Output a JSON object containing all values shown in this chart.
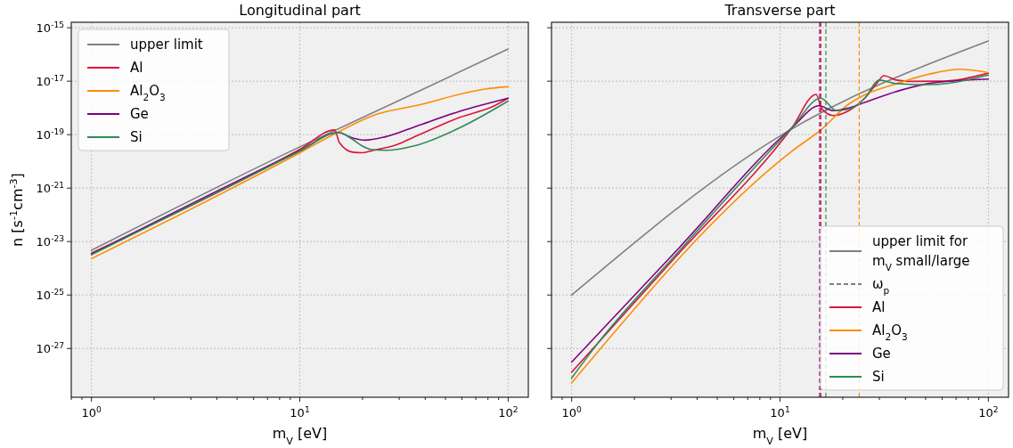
{
  "chart_data": [
    {
      "type": "line",
      "title": "Longitudinal part",
      "xlabel": "m$_{V}$ [eV]",
      "ylabel": "n [s$^{-1}$cm$^{-3}$]",
      "log": "xy",
      "grid": true,
      "legend": "top left",
      "xlim": [
        0.8,
        125
      ],
      "ylim": [
        1.5e-29,
        1.6e-15
      ],
      "xticks": [
        {
          "value": 0.8,
          "label": null
        },
        {
          "value": 0.9,
          "label": null
        },
        {
          "value": 1,
          "label": "10$^{0}$"
        },
        {
          "value": 2,
          "label": null
        },
        {
          "value": 3,
          "label": null
        },
        {
          "value": 4,
          "label": null
        },
        {
          "value": 5,
          "label": null
        },
        {
          "value": 6,
          "label": null
        },
        {
          "value": 7,
          "label": null
        },
        {
          "value": 8,
          "label": null
        },
        {
          "value": 9,
          "label": null
        },
        {
          "value": 10,
          "label": "10$^{1}$"
        },
        {
          "value": 20,
          "label": null
        },
        {
          "value": 30,
          "label": null
        },
        {
          "value": 40,
          "label": null
        },
        {
          "value": 50,
          "label": null
        },
        {
          "value": 60,
          "label": null
        },
        {
          "value": 70,
          "label": null
        },
        {
          "value": 80,
          "label": null
        },
        {
          "value": 90,
          "label": null
        },
        {
          "value": 100,
          "label": "10$^{2}$"
        }
      ],
      "yticks": [
        {
          "value": 1e-27,
          "label": "10$^{-27}$"
        },
        {
          "value": 1e-25,
          "label": "10$^{-25}$"
        },
        {
          "value": 1e-23,
          "label": "10$^{-23}$"
        },
        {
          "value": 1e-21,
          "label": "10$^{-21}$"
        },
        {
          "value": 1e-19,
          "label": "10$^{-19}$"
        },
        {
          "value": 1e-17,
          "label": "10$^{-17}$"
        },
        {
          "value": 1e-15,
          "label": "10$^{-15}$"
        }
      ],
      "series": [
        {
          "name": "upper limit",
          "color": "#808080",
          "x": [
            1,
            10,
            30,
            100
          ],
          "values": [
            4.7e-24,
            3.5e-20,
            1.9e-18,
            1.6e-16
          ]
        },
        {
          "name": "Al",
          "color": "#dc143c",
          "x": [
            1,
            10,
            14.7,
            15.5,
            18,
            20,
            22.6,
            28.7,
            35.8,
            58.5,
            85.9,
            100
          ],
          "values": [
            3.7e-24,
            2.8e-20,
            1.5e-19,
            5e-20,
            2.2e-20,
            2.1e-20,
            2.6e-20,
            4e-20,
            8.5e-20,
            4.4e-19,
            1.2e-18,
            2.3e-18
          ]
        },
        {
          "name": "Al$_{2}$O$_{3}$",
          "color": "#ff8c00",
          "x": [
            1,
            10,
            14.8,
            23.4,
            35.8,
            78.7,
            100
          ],
          "values": [
            2.3e-24,
            2.1e-20,
            1.1e-19,
            5.8e-19,
            1.2e-18,
            5.2e-18,
            6.2e-18
          ]
        },
        {
          "name": "Ge",
          "color": "#800080",
          "x": [
            1,
            10,
            15.3,
            18,
            20.5,
            25.7,
            35.8,
            58.5,
            100
          ],
          "values": [
            3.4e-24,
            2.5e-20,
            1.2e-19,
            7.4e-20,
            6.2e-20,
            8.3e-20,
            2e-19,
            7.4e-19,
            2.3e-18
          ]
        },
        {
          "name": "Si",
          "color": "#2e8b57",
          "x": [
            1,
            10,
            15.3,
            18,
            19.8,
            21.9,
            25.7,
            35.8,
            58.5,
            100
          ],
          "values": [
            3.2e-24,
            2.4e-20,
            1.2e-19,
            6.5e-20,
            3.9e-20,
            2.8e-20,
            2.6e-20,
            3.9e-20,
            1.8e-19,
            1.8e-18
          ]
        }
      ]
    },
    {
      "type": "line",
      "title": "Transverse part",
      "xlabel": "m$_{V}$ [eV]",
      "log": "xy",
      "grid": true,
      "legend": "bottom right",
      "tick_labels": "x",
      "xlim": [
        0.8,
        125
      ],
      "ylim": [
        1.5e-29,
        1.6e-15
      ],
      "xticks": [
        {
          "value": 0.8,
          "label": null
        },
        {
          "value": 0.9,
          "label": null
        },
        {
          "value": 1,
          "label": "10$^{0}$"
        },
        {
          "value": 2,
          "label": null
        },
        {
          "value": 3,
          "label": null
        },
        {
          "value": 4,
          "label": null
        },
        {
          "value": 5,
          "label": null
        },
        {
          "value": 6,
          "label": null
        },
        {
          "value": 7,
          "label": null
        },
        {
          "value": 8,
          "label": null
        },
        {
          "value": 9,
          "label": null
        },
        {
          "value": 10,
          "label": "10$^{1}$"
        },
        {
          "value": 20,
          "label": null
        },
        {
          "value": 30,
          "label": null
        },
        {
          "value": 40,
          "label": null
        },
        {
          "value": 50,
          "label": null
        },
        {
          "value": 60,
          "label": null
        },
        {
          "value": 70,
          "label": null
        },
        {
          "value": 80,
          "label": null
        },
        {
          "value": 90,
          "label": null
        },
        {
          "value": 100,
          "label": "10$^{2}$"
        }
      ],
      "yticks": [
        {
          "value": 1e-27,
          "label": null
        },
        {
          "value": 1e-25,
          "label": null
        },
        {
          "value": 1e-23,
          "label": null
        },
        {
          "value": 1e-21,
          "label": null
        },
        {
          "value": 1e-19,
          "label": null
        },
        {
          "value": 1e-17,
          "label": null
        },
        {
          "value": 1e-15,
          "label": null
        }
      ],
      "ref_lines": [
        {
          "axis": "x",
          "value": 15.5,
          "color": "#800080",
          "line_style": "dashed"
        },
        {
          "axis": "x",
          "value": 15.7,
          "color": "#dc143c",
          "line_style": "dashed"
        },
        {
          "axis": "x",
          "value": 16.6,
          "color": "#2e8b57",
          "line_style": "dashed"
        },
        {
          "axis": "x",
          "value": 24,
          "color": "#ff8c00",
          "line_style": "dashed"
        }
      ],
      "annotations": [
        "ω$_{p}$"
      ],
      "series": [
        {
          "name": "upper limit for\nm$_{V}$ small/large",
          "color": "#808080",
          "x": [
            1,
            10,
            100
          ],
          "values": [
            1e-25,
            8.9e-20,
            3.2e-16
          ]
        },
        {
          "name": "Al",
          "color": "#dc143c",
          "x": [
            1,
            3.16,
            11.4,
            14.9,
            15.9,
            18,
            21.4,
            25.5,
            29.4,
            31.5,
            36.2,
            43.2,
            61.2,
            100
          ],
          "values": [
            1.3e-28,
            2.7e-24,
            1.8e-19,
            3.2e-18,
            9.1e-19,
            5.2e-19,
            7.9e-19,
            2.3e-18,
            9.1e-18,
            1.6e-17,
            1.1e-17,
            9.8e-18,
            1e-17,
            2e-17
          ]
        },
        {
          "name": "Al$_{2}$O$_{3}$",
          "color": "#ff8c00",
          "x": [
            1,
            11.4,
            15.7,
            21.4,
            25.5,
            36.2,
            51.4,
            73,
            100
          ],
          "values": [
            5.2e-29,
            2.4e-20,
            1.5e-19,
            1.4e-18,
            3.1e-18,
            8.1e-18,
            1.8e-17,
            2.8e-17,
            2.1e-17
          ]
        },
        {
          "name": "Ge",
          "color": "#800080",
          "x": [
            1,
            3.16,
            11.4,
            15.4,
            18,
            21.4,
            25.5,
            36.2,
            51.4,
            100
          ],
          "values": [
            3.1e-28,
            4.3e-24,
            1.8e-19,
            1.2e-18,
            7.9e-19,
            1e-18,
            1.6e-18,
            4.1e-18,
            8.1e-18,
            1.2e-17
          ]
        },
        {
          "name": "Si",
          "color": "#2e8b57",
          "x": [
            1,
            1.32,
            3.16,
            11.4,
            15.7,
            18.7,
            22.2,
            25.5,
            29.9,
            36.2,
            51.4,
            100
          ],
          "values": [
            7.9e-29,
            1.4e-27,
            3.2e-24,
            1.8e-19,
            2.3e-18,
            7.9e-19,
            1e-18,
            2.3e-18,
            1.1e-17,
            8.1e-18,
            7.4e-18,
            1.7e-17
          ]
        }
      ]
    }
  ]
}
